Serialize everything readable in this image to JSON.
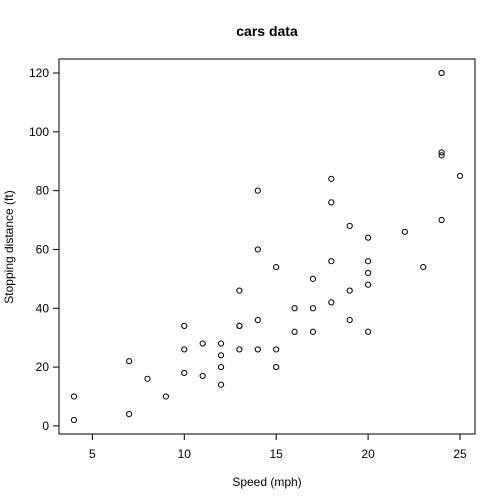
{
  "chart_data": {
    "type": "scatter",
    "title": "cars data",
    "xlabel": "Speed (mph)",
    "ylabel": "Stopping distance (ft)",
    "xlim": [
      4,
      25
    ],
    "ylim": [
      2,
      120
    ],
    "xticks": [
      5,
      10,
      15,
      20,
      25
    ],
    "yticks": [
      0,
      20,
      40,
      60,
      80,
      100,
      120
    ],
    "grid": false,
    "legend": "none",
    "marker_color": "#000000",
    "series": [
      {
        "x": [
          4,
          4,
          7,
          7,
          8,
          9,
          10,
          10,
          10,
          11,
          11,
          12,
          12,
          12,
          12,
          13,
          13,
          13,
          13,
          14,
          14,
          14,
          14,
          15,
          15,
          15,
          16,
          16,
          17,
          17,
          17,
          18,
          18,
          18,
          18,
          19,
          19,
          19,
          20,
          20,
          20,
          20,
          20,
          22,
          23,
          24,
          24,
          24,
          24,
          25
        ],
        "y": [
          2,
          10,
          4,
          22,
          16,
          10,
          18,
          26,
          34,
          17,
          28,
          14,
          20,
          24,
          28,
          26,
          34,
          34,
          46,
          26,
          36,
          60,
          80,
          20,
          26,
          54,
          32,
          40,
          32,
          40,
          50,
          42,
          56,
          76,
          84,
          36,
          46,
          68,
          32,
          48,
          52,
          56,
          64,
          66,
          54,
          70,
          92,
          93,
          120,
          85
        ]
      }
    ]
  }
}
